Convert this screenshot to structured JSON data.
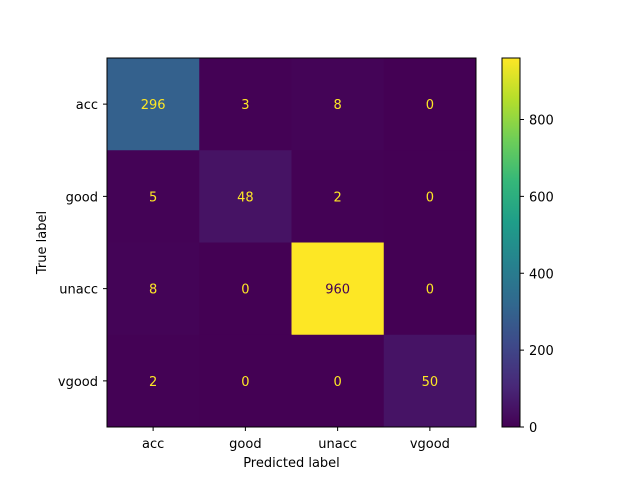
{
  "chart_data": {
    "type": "heatmap",
    "x_categories": [
      "acc",
      "good",
      "unacc",
      "vgood"
    ],
    "y_categories": [
      "acc",
      "good",
      "unacc",
      "vgood"
    ],
    "matrix": [
      [
        296,
        3,
        8,
        0
      ],
      [
        5,
        48,
        2,
        0
      ],
      [
        8,
        0,
        960,
        0
      ],
      [
        2,
        0,
        0,
        50
      ]
    ],
    "xlabel": "Predicted label",
    "ylabel": "True label",
    "colormap": "viridis",
    "colorbar": {
      "range": [
        0,
        960
      ],
      "ticks": [
        0,
        200,
        400,
        600,
        800
      ]
    },
    "label_colors": {
      "on_dark": "#fde725",
      "on_light": "#440154"
    }
  }
}
